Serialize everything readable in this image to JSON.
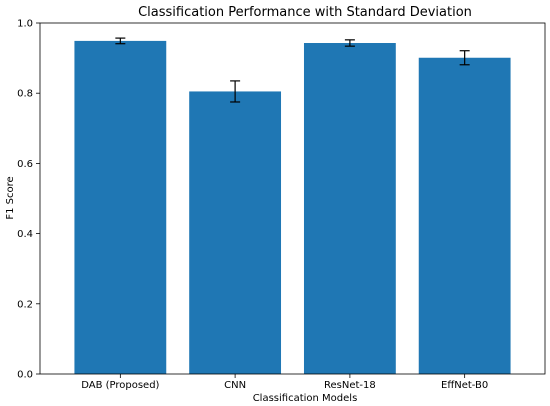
{
  "chart_data": {
    "type": "bar",
    "title": "Classification Performance with Standard Deviation",
    "xlabel": "Classification Models",
    "ylabel": "F1 Score",
    "categories": [
      "DAB (Proposed)",
      "CNN",
      "ResNet-18",
      "EffNet-B0"
    ],
    "values": [
      0.949,
      0.805,
      0.943,
      0.901
    ],
    "errors": [
      0.008,
      0.03,
      0.009,
      0.02
    ],
    "ylim": [
      0,
      1.0
    ],
    "yticks": [
      "0.0",
      "0.2",
      "0.4",
      "0.6",
      "0.8",
      "1.0"
    ],
    "bar_color": "#1f77b4",
    "grid": false,
    "legend": "none"
  }
}
